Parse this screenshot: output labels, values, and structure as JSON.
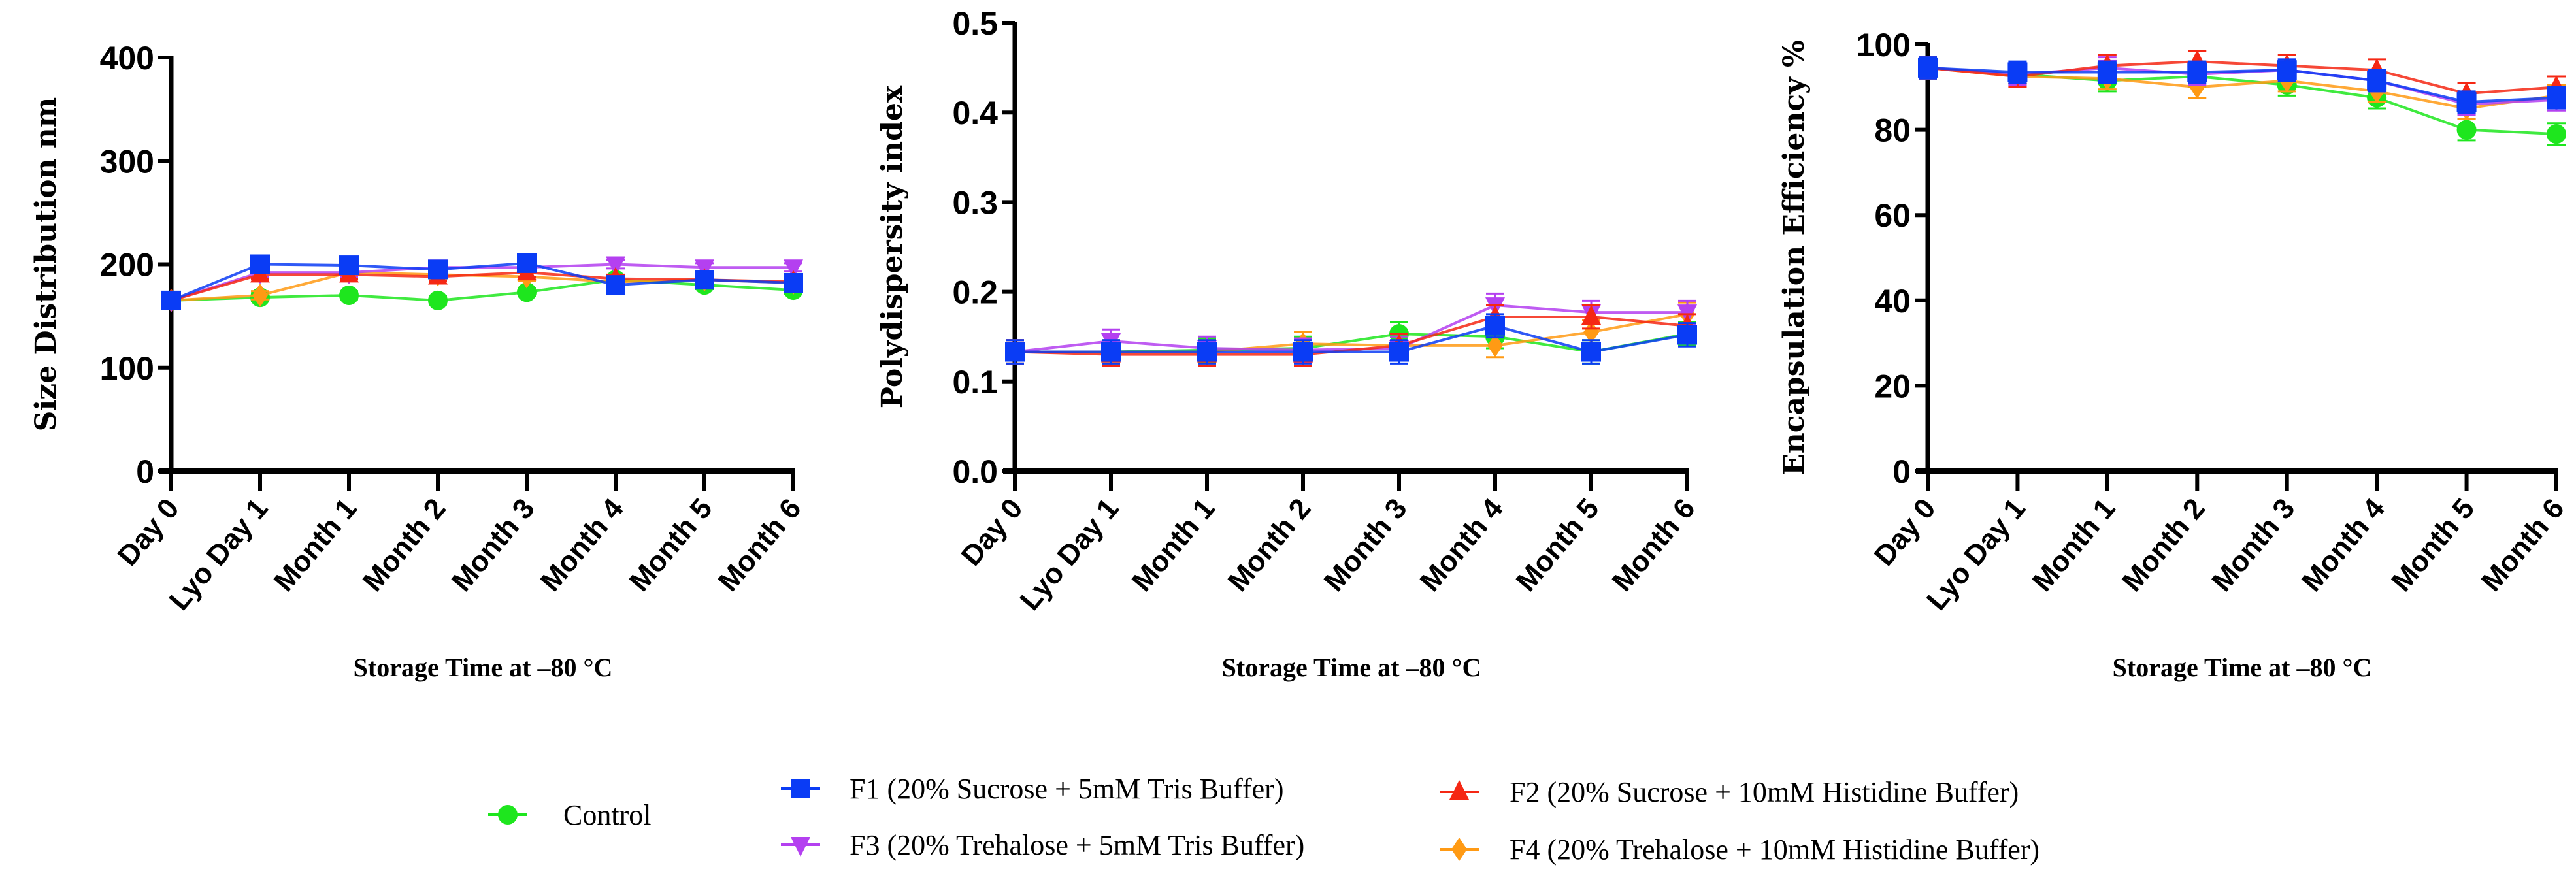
{
  "series_meta": [
    {
      "key": "control",
      "name": "Control",
      "color": "#1ee61e",
      "marker": "circle"
    },
    {
      "key": "f1",
      "name": "F1 (20% Sucrose + 5mM Tris Buffer)",
      "color": "#0a3cf5",
      "marker": "square"
    },
    {
      "key": "f2",
      "name": "F2 (20% Sucrose + 10mM Histidine Buffer)",
      "color": "#f52814",
      "marker": "triangle-up"
    },
    {
      "key": "f3",
      "name": "F3 (20% Trehalose + 5mM Tris Buffer)",
      "color": "#b440f0",
      "marker": "triangle-down"
    },
    {
      "key": "f4",
      "name": "F4 (20% Trehalose + 10mM Histidine Buffer)",
      "color": "#ff9a14",
      "marker": "diamond"
    }
  ],
  "chart_data": [
    {
      "type": "line",
      "ylabel": "Size Distribution nm",
      "xlabel": "Storage Time at –80 °C",
      "categories": [
        "Day 0",
        "Lyo Day 1",
        "Month 1",
        "Month 2",
        "Month 3",
        "Month 4",
        "Month 5",
        "Month 6"
      ],
      "ylim": [
        0,
        400
      ],
      "yticks": [
        "0",
        "100",
        "200",
        "300",
        "400"
      ],
      "ytick_values": [
        0,
        100,
        200,
        300,
        400
      ],
      "error": 4,
      "series": [
        {
          "name": "Control",
          "values": [
            165,
            168,
            170,
            165,
            173,
            185,
            180,
            175
          ]
        },
        {
          "name": "F1 (20% Sucrose + 5mM Tris Buffer)",
          "values": [
            165,
            200,
            199,
            195,
            201,
            180,
            185,
            182
          ]
        },
        {
          "name": "F2 (20% Sucrose + 10mM Histidine Buffer)",
          "values": [
            165,
            190,
            190,
            188,
            192,
            186,
            185,
            183
          ]
        },
        {
          "name": "F3 (20% Trehalose + 5mM Tris Buffer)",
          "values": [
            165,
            192,
            192,
            197,
            197,
            200,
            197,
            197
          ]
        },
        {
          "name": "F4 (20% Trehalose + 10mM Histidine Buffer)",
          "values": [
            165,
            170,
            192,
            190,
            188,
            183,
            185,
            182
          ]
        }
      ]
    },
    {
      "type": "line",
      "ylabel": "Polydispersity index",
      "xlabel": "Storage Time at –80 °C",
      "categories": [
        "Day 0",
        "Lyo Day 1",
        "Month 1",
        "Month 2",
        "Month 3",
        "Month 4",
        "Month 5",
        "Month 6"
      ],
      "ylim": [
        0,
        0.5
      ],
      "yticks": [
        "0.0",
        "0.1",
        "0.2",
        "0.3",
        "0.4",
        "0.5"
      ],
      "ytick_values": [
        0,
        0.1,
        0.2,
        0.3,
        0.4,
        0.5
      ],
      "error": 0.013,
      "series": [
        {
          "name": "Control",
          "values": [
            0.133,
            0.133,
            0.135,
            0.137,
            0.153,
            0.15,
            0.133,
            0.153
          ]
        },
        {
          "name": "F1 (20% Sucrose + 5mM Tris Buffer)",
          "values": [
            0.133,
            0.133,
            0.133,
            0.133,
            0.133,
            0.162,
            0.133,
            0.152
          ]
        },
        {
          "name": "F2 (20% Sucrose + 10mM Histidine Buffer)",
          "values": [
            0.133,
            0.13,
            0.13,
            0.13,
            0.14,
            0.172,
            0.172,
            0.162
          ]
        },
        {
          "name": "F3 (20% Trehalose + 5mM Tris Buffer)",
          "values": [
            0.133,
            0.145,
            0.137,
            0.135,
            0.137,
            0.185,
            0.177,
            0.177
          ]
        },
        {
          "name": "F4 (20% Trehalose + 10mM Histidine Buffer)",
          "values": [
            0.133,
            0.133,
            0.133,
            0.142,
            0.14,
            0.14,
            0.155,
            0.175
          ]
        }
      ]
    },
    {
      "type": "line",
      "ylabel": "Encapsulation Efficiency %",
      "xlabel": "Storage Time at –80 °C",
      "categories": [
        "Day 0",
        "Lyo Day 1",
        "Month 1",
        "Month 2",
        "Month 3",
        "Month 4",
        "Month 5",
        "Month 6"
      ],
      "ylim": [
        0,
        100
      ],
      "yticks": [
        "0",
        "20",
        "40",
        "60",
        "80",
        "100"
      ],
      "ytick_values": [
        0,
        20,
        40,
        60,
        80,
        100
      ],
      "error": 2.5,
      "series": [
        {
          "name": "Control",
          "values": [
            94.5,
            93,
            91.5,
            92.5,
            90.5,
            87.5,
            80,
            79
          ]
        },
        {
          "name": "F1 (20% Sucrose + 5mM Tris Buffer)",
          "values": [
            94.5,
            93.5,
            93.5,
            93.5,
            94,
            91.5,
            86.5,
            87.5
          ]
        },
        {
          "name": "F2 (20% Sucrose + 10mM Histidine Buffer)",
          "values": [
            94.5,
            92.5,
            95,
            96,
            95,
            94,
            88.5,
            90
          ]
        },
        {
          "name": "F3 (20% Trehalose + 5mM Tris Buffer)",
          "values": [
            94.5,
            93,
            94.5,
            93,
            94,
            91.5,
            86,
            87
          ]
        },
        {
          "name": "F4 (20% Trehalose + 10mM Histidine Buffer)",
          "values": [
            94.5,
            92.5,
            92,
            90,
            91.5,
            89,
            85,
            88
          ]
        }
      ]
    }
  ]
}
